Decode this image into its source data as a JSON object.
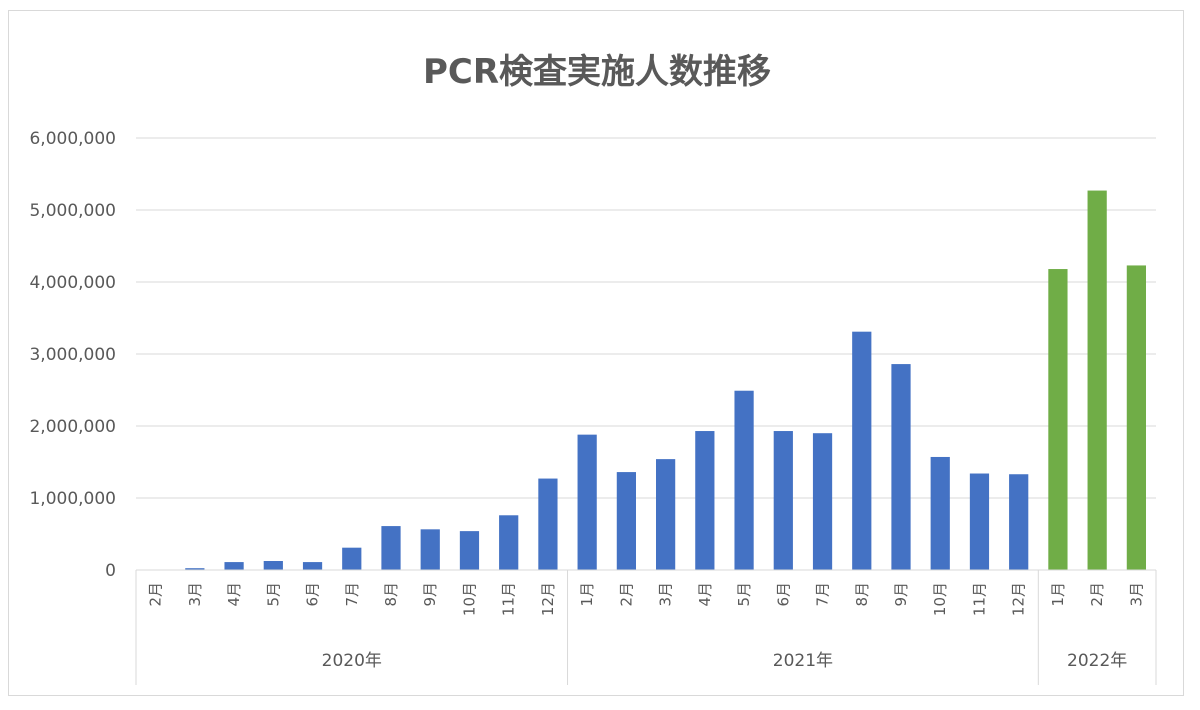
{
  "chart_data": {
    "type": "bar",
    "title": "PCR検査実施人数推移",
    "ylim": [
      0,
      6000000
    ],
    "yticks": [
      "0",
      "1,000,000",
      "2,000,000",
      "3,000,000",
      "4,000,000",
      "5,000,000",
      "6,000,000"
    ],
    "grid": true,
    "groups": [
      {
        "label": "2020年",
        "color": "#4472c4",
        "categories": [
          "2月",
          "3月",
          "4月",
          "5月",
          "6月",
          "7月",
          "8月",
          "9月",
          "10月",
          "11月",
          "12月"
        ],
        "values": [
          3000,
          25000,
          110000,
          125000,
          110000,
          310000,
          610000,
          565000,
          540000,
          760000,
          1270000
        ]
      },
      {
        "label": "2021年",
        "color": "#4472c4",
        "categories": [
          "1月",
          "2月",
          "3月",
          "4月",
          "5月",
          "6月",
          "7月",
          "8月",
          "9月",
          "10月",
          "11月",
          "12月"
        ],
        "values": [
          1880000,
          1360000,
          1540000,
          1930000,
          2490000,
          1930000,
          1900000,
          3310000,
          2860000,
          1570000,
          1340000,
          1330000
        ]
      },
      {
        "label": "2022年",
        "color": "#70ad47",
        "categories": [
          "1月",
          "2月",
          "3月"
        ],
        "values": [
          4180000,
          5270000,
          4230000
        ]
      }
    ]
  }
}
